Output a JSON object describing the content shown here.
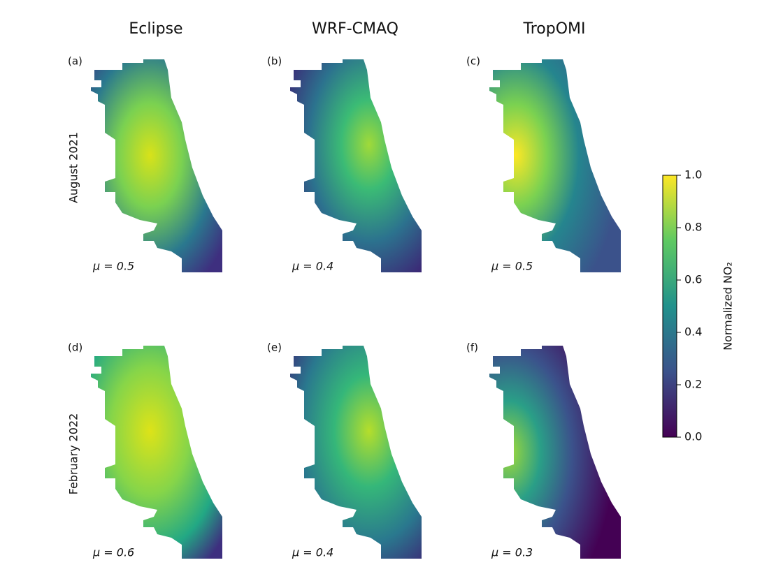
{
  "columns": [
    "Eclipse",
    "WRF-CMAQ",
    "TropOMI"
  ],
  "rows": [
    "August 2021",
    "February 2022"
  ],
  "panels": [
    {
      "label": "(a)",
      "mean": "μ = 0.5"
    },
    {
      "label": "(b)",
      "mean": "μ = 0.4"
    },
    {
      "label": "(c)",
      "mean": "μ = 0.5"
    },
    {
      "label": "(d)",
      "mean": "μ = 0.6"
    },
    {
      "label": "(e)",
      "mean": "μ = 0.4"
    },
    {
      "label": "(f)",
      "mean": "μ = 0.3"
    }
  ],
  "colorbar": {
    "label": "Normalized NO₂",
    "lim": [
      0,
      1
    ],
    "ticks": [
      {
        "value": 0,
        "label": "0.0"
      },
      {
        "value": 0.2,
        "label": "0.2"
      },
      {
        "value": 0.4,
        "label": "0.4"
      },
      {
        "value": 0.6,
        "label": "0.6"
      },
      {
        "value": 0.8,
        "label": "0.8"
      },
      {
        "value": 1,
        "label": "1.0"
      }
    ],
    "colors": [
      "#440154",
      "#3b528b",
      "#21918c",
      "#5ec962",
      "#fde725"
    ]
  }
}
